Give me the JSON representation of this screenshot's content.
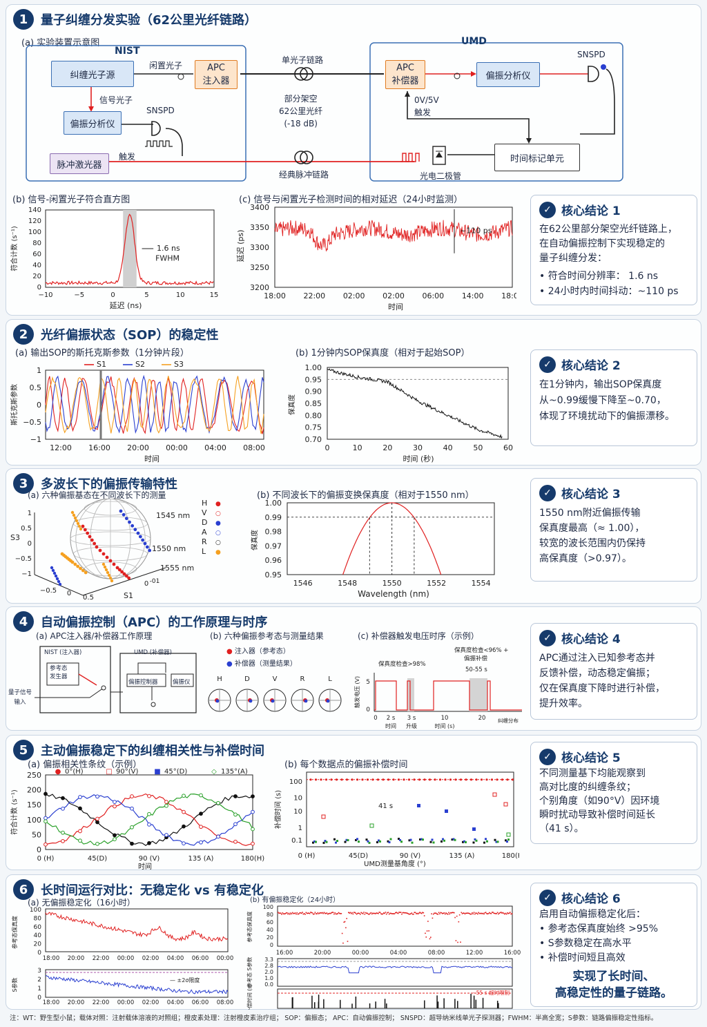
{
  "s1": {
    "num": "1",
    "title": "量子纠缠分发实验（62公里光纤链路）",
    "a": "(a)  实验装置示意图",
    "nist": "NIST",
    "umd": "UMD",
    "src": "纠缠光子源",
    "idler": "闲置光子",
    "apc_inj": [
      "APC",
      "注入器"
    ],
    "single": "单光子链路",
    "apc_comp": [
      "APC",
      "补偿器"
    ],
    "pol_an": "偏振分析仪",
    "snspd": "SNSPD",
    "signal": "信号光子",
    "pol_an2": "偏振分析仪",
    "snspd2": "SNSPD",
    "fiber": [
      "部分架空",
      "62公里光纤",
      "(-18 dB)"
    ],
    "trig_v": [
      "0V/5V",
      "触发"
    ],
    "laser": "脉冲激光器",
    "trig": "触发",
    "classic": "经典脉冲链路",
    "pd": "光电二极管",
    "tag": "时间标记单元",
    "b": "(b)  信号-闲置光子符合直方图",
    "b_ylabel": "符合计数 (s⁻¹)",
    "b_xlabel": "延迟 (ns)",
    "b_note": [
      "1.6 ns",
      "FWHM"
    ],
    "c": "(c)  信号与闲置光子检测时间的相对延迟（24小时监测）",
    "c_ylabel": "延迟 (ps)",
    "c_xlabel": "时间",
    "c_note": "~110 ps",
    "concl": {
      "title": "核心结论 1",
      "text": [
        "在62公里部分架空光纤链路上，",
        "在自动偏振控制下实现稳定的",
        "量子纠缠分发："
      ],
      "items": [
        "•  符合时间分辨率：    1.6 ns",
        "•  24小时内时间抖动：~110 ps"
      ]
    }
  },
  "s2": {
    "num": "2",
    "title": "光纤偏振状态（SOP）的稳定性",
    "a": "(a)  输出SOP的斯托克斯参数（1分钟片段）",
    "a_ylabel": "斯托克斯参数",
    "a_xlabel": "时间",
    "legend": [
      "S1",
      "S2",
      "S3"
    ],
    "b": "(b)  1分钟内SOP保真度（相对于起始SOP）",
    "b_ylabel": "保真度",
    "b_xlabel": "时间 (秒)",
    "concl": {
      "title": "核心结论 2",
      "text": [
        "在1分钟内，输出SOP保真度",
        "从~0.99缓慢下降至~0.70，",
        "体现了环境扰动下的偏振漂移。"
      ]
    }
  },
  "s3": {
    "num": "3",
    "title": "多波长下的偏振传输特性",
    "a": "(a)  六种偏振基态在不同波长下的测量",
    "sphere_labels": [
      "1545 nm",
      "1550 nm",
      "1555 nm"
    ],
    "legend": [
      "H",
      "V",
      "D",
      "A",
      "R",
      "L"
    ],
    "b": "(b)  不同波长下的偏振变换保真度（相对于1550 nm）",
    "b_ylabel": "保真度",
    "b_xlabel": "Wavelength (nm)",
    "concl": {
      "title": "核心结论 3",
      "text": [
        "1550 nm附近偏振传输",
        "保真度最高（≈ 1.00），",
        "较宽的波长范围内仍保持",
        "高保真度（>0.97）。"
      ]
    }
  },
  "s4": {
    "num": "4",
    "title": "自动偏振控制（APC）的工作原理与时序",
    "a": "(a)  APC注入器/补偿器工作原理",
    "nist": "NIST (注入器)",
    "umd": "UMD (补偿器)",
    "ref": [
      "参考态",
      "发生器"
    ],
    "qin": [
      "量子信号",
      "输入"
    ],
    "pc": "偏振控制器",
    "pa": "偏振仪",
    "b": "(b)  六种偏振参考态与测量结果",
    "b_leg": [
      "注入器（参考态）",
      "补偿器（测量结果）"
    ],
    "b_labels": [
      "H",
      "D",
      "V",
      "R",
      "L"
    ],
    "c": "(c)  补偿器触发电压时序（示例）",
    "c_ylabel": "触发电压 (V)",
    "c_notes": [
      "保真度检查>98%",
      "保真度检查<96% +",
      "偏振补偿",
      "50-55 s",
      "2 s",
      "时间",
      "3 s",
      "升级",
      "时间 (s)",
      "纠缠分布"
    ],
    "concl": {
      "title": "核心结论 4",
      "text": [
        "APC通过注入已知参考态并",
        "反馈补偿，动态稳定偏振；",
        "仅在保真度下降时进行补偿，",
        "提升效率。"
      ]
    }
  },
  "s5": {
    "num": "5",
    "title": "主动偏振稳定下的纠缠相关性与补偿时间",
    "a": "(a)  偏振相关性条纹（示例）",
    "a_leg": [
      "0°(H)",
      "90°(V)",
      "45°(D)",
      "135°(A)"
    ],
    "a_ylabel": "符合计数 (s⁻¹)",
    "a_xlabel": "时间",
    "b": "(b)  每个数据点的偏振补偿时间",
    "b_ylabel": "补偿时间 (s)",
    "b_xlabel": "UMD测量基角度 (°)",
    "b_note": "41 s",
    "concl": {
      "title": "核心结论 5",
      "text": [
        "不同测量基下均能观察到",
        "高对比度的纠缠条纹；",
        "个别角度（如90°V）因环境",
        "瞬时扰动导致补偿时间延长",
        "（41 s）。"
      ]
    }
  },
  "s6": {
    "num": "6",
    "title": "长时间运行对比：无稳定化 vs 有稳定化",
    "a": "(a)  无偏振稳定化（16小时）",
    "a_ylabel1": "参考态保真度",
    "a_ylabel2": "S参数",
    "a_note": "±2σ限度",
    "b": "(b)  有偏振稳定化（24小时）",
    "b_ylabel1": "参考态保真度",
    "b_ylabel2": "参考态 S参数",
    "b_ylabel3": "补偿时间 (s)",
    "b_note": "55 s 超时限制",
    "concl": {
      "title": "核心结论 6",
      "text": [
        "启用自动偏振稳定化后："
      ],
      "items": [
        "•  参考态保真度始终 >95%",
        "•  S参数稳定在高水平",
        "•  补偿时间短且高效"
      ],
      "final": [
        "实现了长时间、",
        "高稳定性的量子链路。"
      ]
    }
  },
  "footer": "注：WT：野生型小鼠；载体对照：注射载体溶液的对照组；橙皮素处理：注射橙皮素治疗组；  SOP：偏振态；  APC：自动偏振控制；  SNSPD：超导纳米线单光子探测器；FWHM：半高全宽；S参数：链路偏振稳定性指标。",
  "colors": {
    "navy": "#163a6b",
    "red": "#e02020",
    "blue": "#2a3fd0",
    "orange": "#f5a020",
    "green": "#2aa02a",
    "black": "#111111"
  },
  "chart_data": [
    {
      "type": "line",
      "title": "信号-闲置光子符合直方图",
      "xlabel": "延迟 (ns)",
      "ylabel": "符合计数 (s⁻¹)",
      "xlim": [
        -10,
        15
      ],
      "ylim": [
        0,
        140
      ],
      "peak": {
        "x": 2.5,
        "y": 125
      },
      "fwhm_ns": 1.6,
      "baseline": 8
    },
    {
      "type": "line",
      "title": "信号与闲置光子检测时间的相对延迟（24小时监测）",
      "xlabel": "时间",
      "ylabel": "延迟 (ps)",
      "ylim": [
        3200,
        3400
      ],
      "x_ticks": [
        "18:00",
        "22:00",
        "02:00",
        "02:00",
        "06:00",
        "14:00",
        "18:00"
      ],
      "mean_ps": 3340,
      "jitter_ps": 110
    },
    {
      "type": "line",
      "title": "输出SOP的斯托克斯参数（1分钟片段）",
      "series": [
        {
          "name": "S1"
        },
        {
          "name": "S2"
        },
        {
          "name": "S3"
        }
      ],
      "ylim": [
        -1,
        1
      ],
      "x_ticks": [
        "12:00",
        "16:00",
        "20:00",
        "00:00",
        "04:00",
        "08:00"
      ]
    },
    {
      "type": "line",
      "title": "1分钟内SOP保真度（相对于起始SOP）",
      "xlabel": "时间 (秒)",
      "ylabel": "保真度",
      "xlim": [
        0,
        60
      ],
      "ylim": [
        0.7,
        1.0
      ],
      "x": [
        0,
        10,
        20,
        30,
        40,
        50,
        58
      ],
      "y": [
        0.99,
        0.96,
        0.94,
        0.86,
        0.8,
        0.74,
        0.71
      ],
      "threshold": 0.95
    },
    {
      "type": "line",
      "title": "不同波长下的偏振变换保真度（相对于1550 nm）",
      "xlabel": "Wavelength (nm)",
      "ylabel": "保真度",
      "xlim": [
        1546,
        1554
      ],
      "ylim": [
        0.95,
        1.0
      ],
      "x": [
        1547.8,
        1548,
        1549,
        1550,
        1551,
        1552,
        1552.2
      ],
      "y": [
        0.95,
        0.967,
        0.993,
        1.0,
        0.993,
        0.967,
        0.95
      ],
      "markers": [
        1549,
        1550,
        1551
      ],
      "threshold": 0.99
    },
    {
      "type": "line",
      "title": "偏振相关性条纹（示例）",
      "xlabel": "时间",
      "ylabel": "符合计数 (s⁻¹)",
      "ylim": [
        0,
        250
      ],
      "x_ticks": [
        "0 (H)",
        "45(D)",
        "90 (V)",
        "135 (A)",
        "180(H)"
      ],
      "series": [
        {
          "name": "0°(H)",
          "phase_deg": 0
        },
        {
          "name": "90°(V)",
          "phase_deg": 90
        },
        {
          "name": "45°(D)",
          "phase_deg": 45
        },
        {
          "name": "135°(A)",
          "phase_deg": 135
        }
      ]
    },
    {
      "type": "scatter",
      "title": "每个数据点的偏振补偿时间",
      "xlabel": "UMD测量基角度 (°)",
      "ylabel": "补偿时间 (s)",
      "y_ticks": [
        "0.1",
        "1",
        "10",
        "10",
        "100"
      ],
      "x_ticks": [
        "0 (H)",
        "45(D)",
        "90 (V)",
        "135 (A)",
        "180(H)"
      ],
      "timeout_s": 100,
      "highlight_s": 41
    }
  ]
}
